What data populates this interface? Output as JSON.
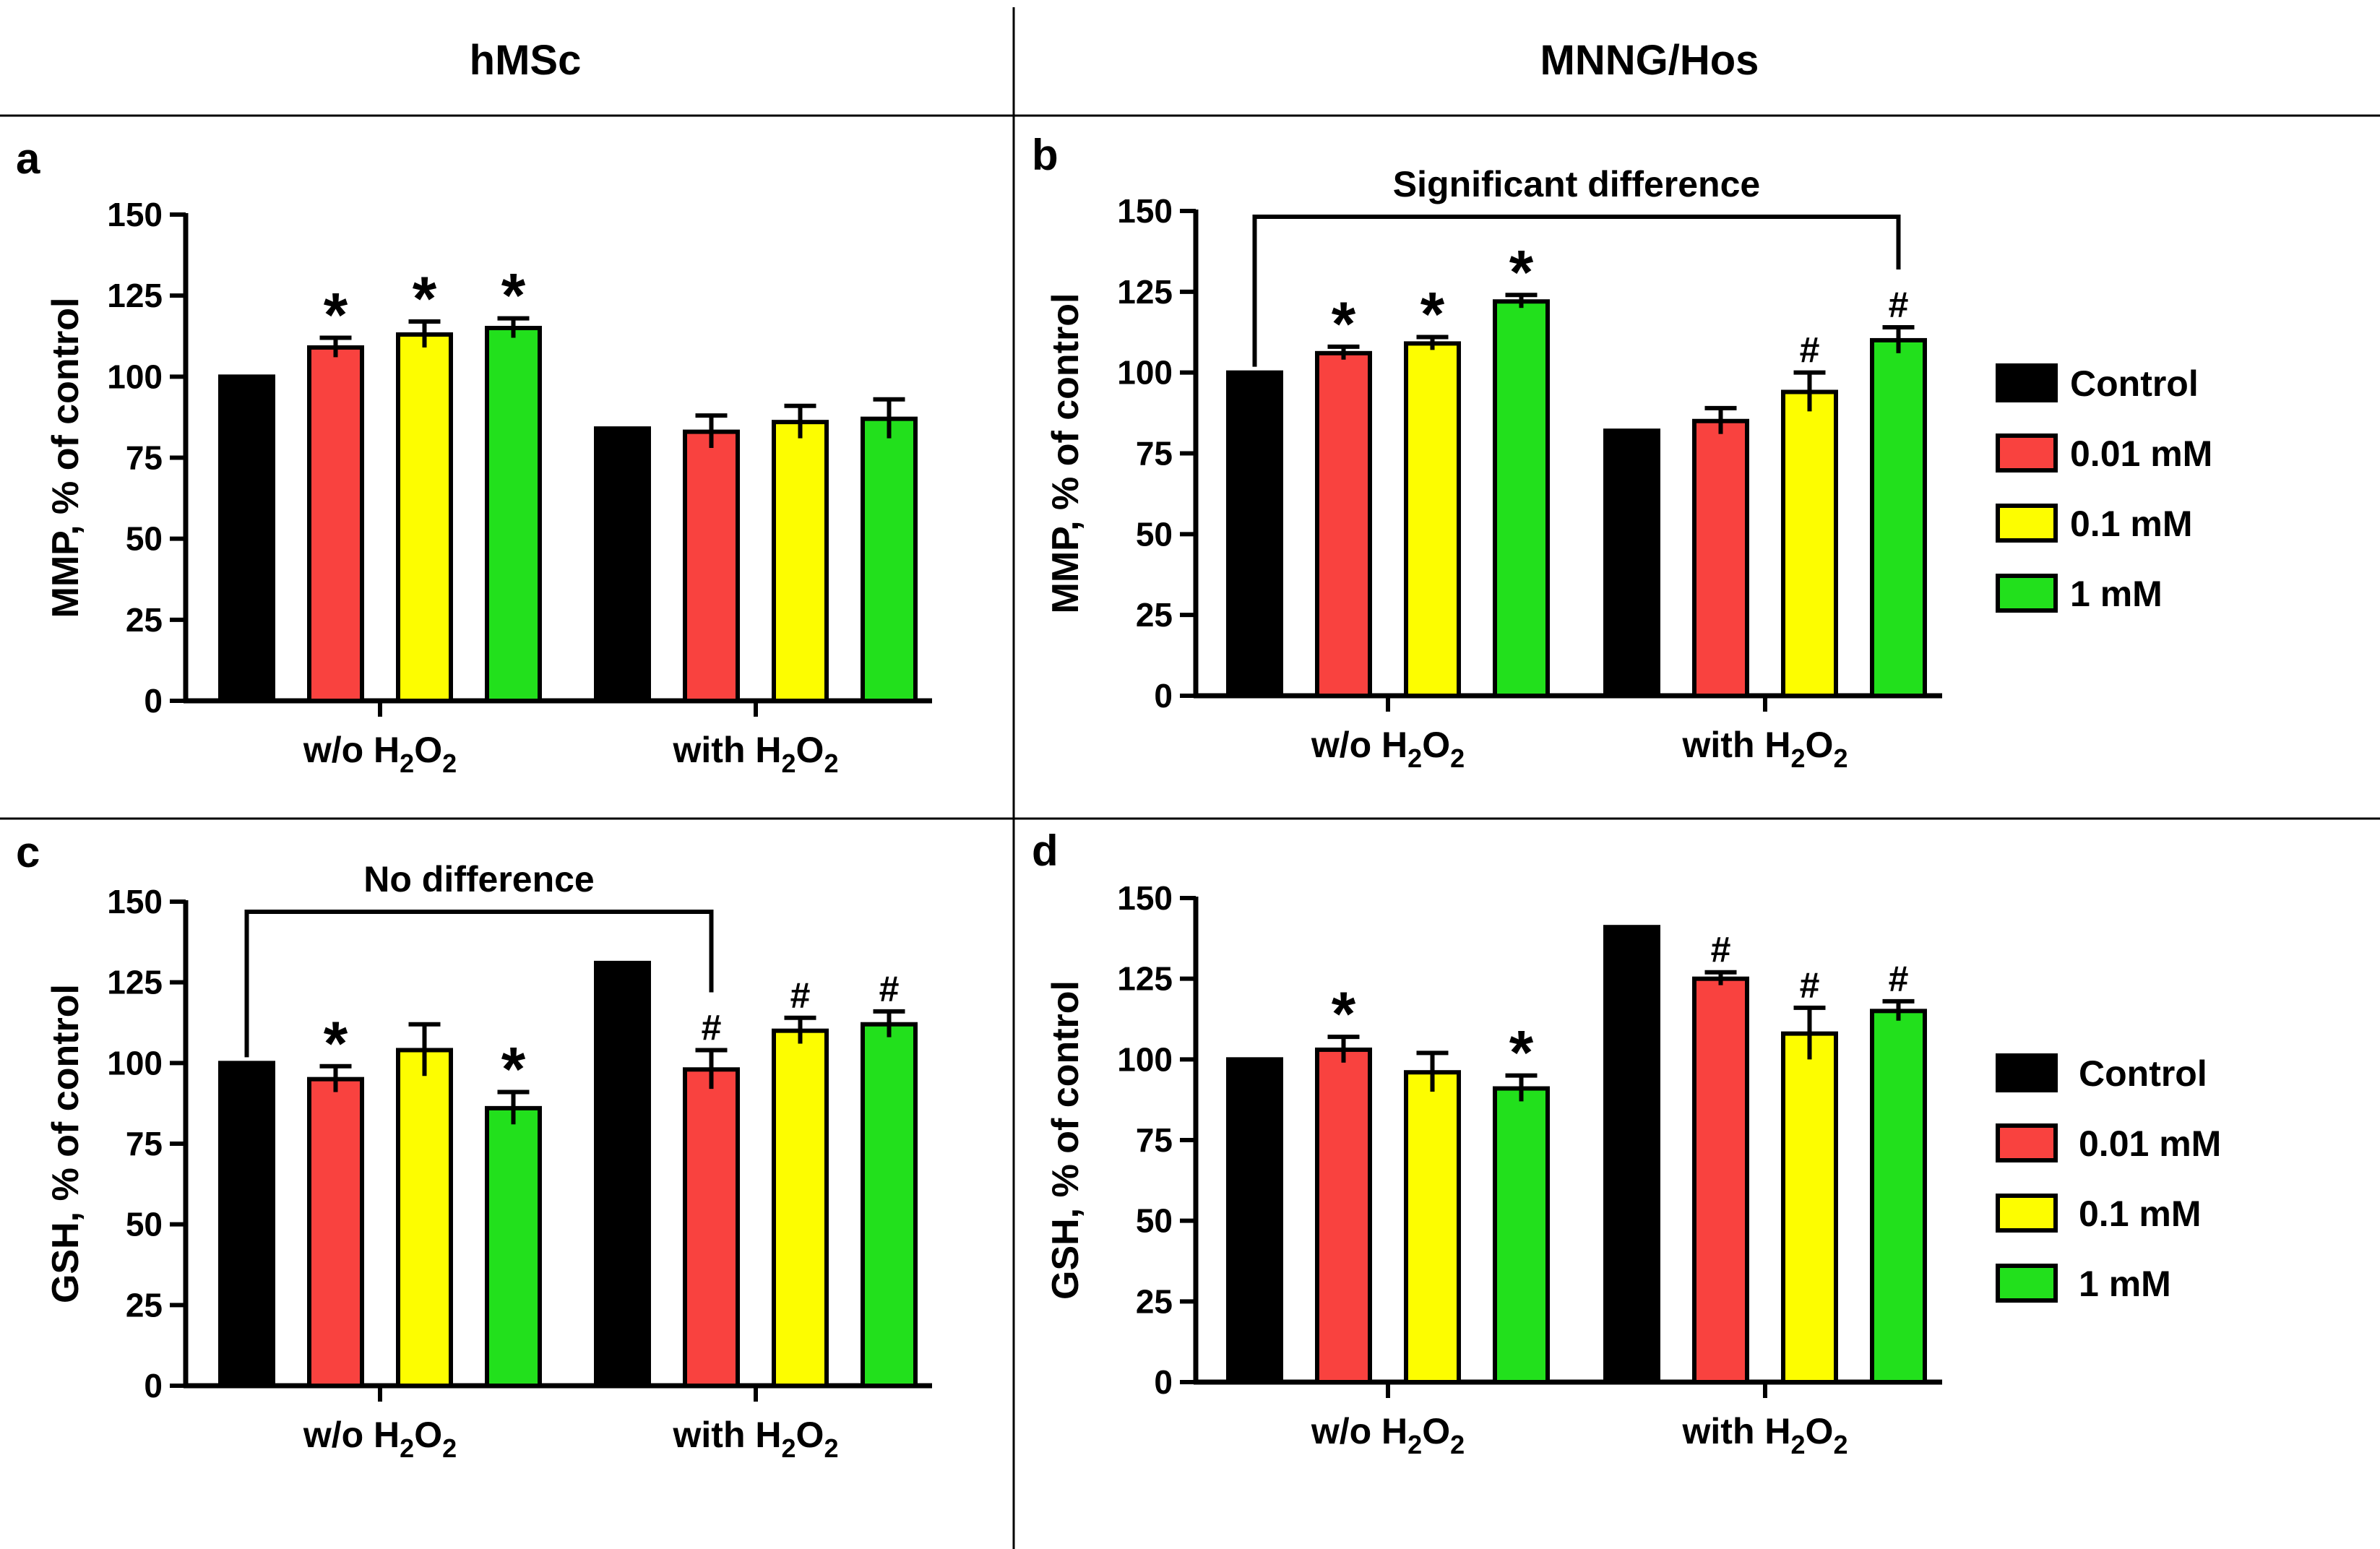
{
  "column_titles": [
    "hMSc",
    "MNNG/Hos"
  ],
  "legend": [
    {
      "label": "Control",
      "color": "#000000"
    },
    {
      "label": "0.01 mM",
      "color": "#f9423f"
    },
    {
      "label": "0.1 mM",
      "color": "#fdfd00"
    },
    {
      "label": "1 mM",
      "color": "#22e01c"
    }
  ],
  "chart_data": [
    {
      "type": "bar",
      "panel": "a",
      "ylabel": "MMP, % of control",
      "ylim": [
        0,
        150
      ],
      "yticks": [
        0,
        25,
        50,
        75,
        100,
        125,
        150
      ],
      "groups": [
        {
          "label_main": "w/o H",
          "label_tail": "O",
          "values": [
            100,
            109,
            113,
            115
          ],
          "errors": [
            0,
            3,
            4,
            3
          ],
          "marks": [
            "",
            "*",
            "*",
            "*"
          ]
        },
        {
          "label_main": "with H",
          "label_tail": "O",
          "values": [
            84,
            83,
            86,
            87
          ],
          "errors": [
            0,
            5,
            5,
            6
          ],
          "marks": [
            "",
            "",
            "",
            ""
          ]
        }
      ],
      "annotation": null
    },
    {
      "type": "bar",
      "panel": "b",
      "ylabel": "MMP, % of control",
      "ylim": [
        0,
        150
      ],
      "yticks": [
        0,
        25,
        50,
        75,
        100,
        125,
        150
      ],
      "groups": [
        {
          "label_main": "w/o H",
          "label_tail": "O",
          "values": [
            100,
            106,
            109,
            122
          ],
          "errors": [
            0,
            2,
            2,
            2
          ],
          "marks": [
            "",
            "*",
            "*",
            "*"
          ]
        },
        {
          "label_main": "with H",
          "label_tail": "O",
          "values": [
            82,
            85,
            94,
            110
          ],
          "errors": [
            0,
            4,
            6,
            4
          ],
          "marks": [
            "",
            "",
            "#",
            "#"
          ]
        }
      ],
      "annotation": {
        "text": "Significant difference",
        "from": [
          0,
          0
        ],
        "to": [
          1,
          3
        ]
      }
    },
    {
      "type": "bar",
      "panel": "c",
      "ylabel": "GSH, % of control",
      "ylim": [
        0,
        150
      ],
      "yticks": [
        0,
        25,
        50,
        75,
        100,
        125,
        150
      ],
      "groups": [
        {
          "label_main": "w/o H",
          "label_tail": "O",
          "values": [
            100,
            95,
            104,
            86
          ],
          "errors": [
            0,
            4,
            8,
            5
          ],
          "marks": [
            "",
            "*",
            "",
            "*"
          ]
        },
        {
          "label_main": "with H",
          "label_tail": "O",
          "values": [
            131,
            98,
            110,
            112
          ],
          "errors": [
            0,
            6,
            4,
            4
          ],
          "marks": [
            "",
            "#",
            "#",
            "#"
          ]
        }
      ],
      "annotation": {
        "text": "No difference",
        "from": [
          0,
          0
        ],
        "to": [
          1,
          1
        ]
      }
    },
    {
      "type": "bar",
      "panel": "d",
      "ylabel": "GSH, % of control",
      "ylim": [
        0,
        150
      ],
      "yticks": [
        0,
        25,
        50,
        75,
        100,
        125,
        150
      ],
      "groups": [
        {
          "label_main": "w/o H",
          "label_tail": "O",
          "values": [
            100,
            103,
            96,
            91
          ],
          "errors": [
            0,
            4,
            6,
            4
          ],
          "marks": [
            "",
            "*",
            "",
            "*"
          ]
        },
        {
          "label_main": "with H",
          "label_tail": "O",
          "values": [
            141,
            125,
            108,
            115
          ],
          "errors": [
            0,
            2,
            8,
            3
          ],
          "marks": [
            "",
            "#",
            "#",
            "#"
          ]
        }
      ],
      "annotation": null
    }
  ],
  "subscript": "2"
}
